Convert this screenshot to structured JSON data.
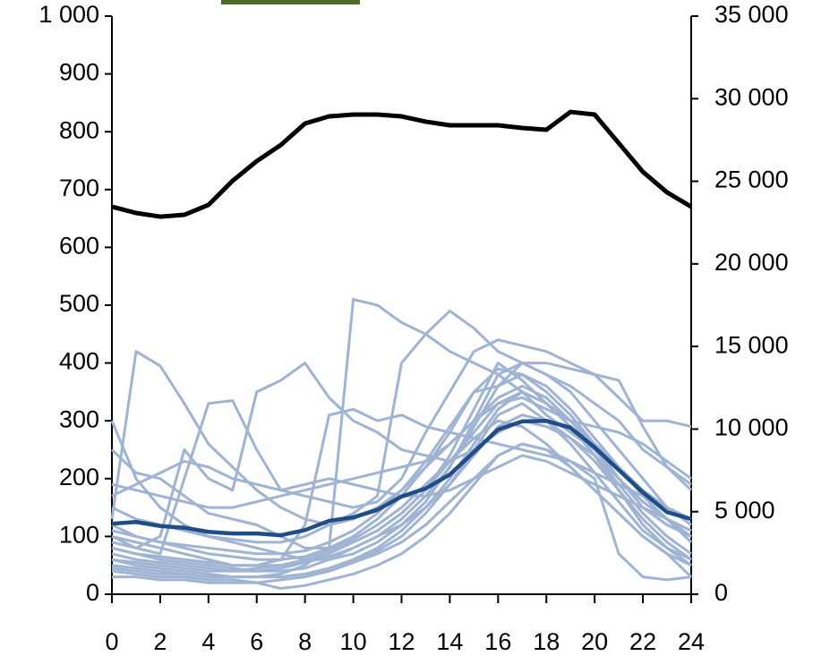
{
  "chart_data": {
    "type": "line",
    "x": [
      0,
      1,
      2,
      3,
      4,
      5,
      6,
      7,
      8,
      9,
      10,
      11,
      12,
      13,
      14,
      15,
      16,
      17,
      18,
      19,
      20,
      21,
      22,
      23,
      24
    ],
    "xlim": [
      0,
      24
    ],
    "xticks": [
      0,
      2,
      4,
      6,
      8,
      10,
      12,
      14,
      16,
      18,
      20,
      22,
      24
    ],
    "ylim": [
      0,
      1000
    ],
    "yticks": [
      0,
      100,
      200,
      300,
      400,
      500,
      600,
      700,
      800,
      900,
      {
        "value": 1000,
        "label": "1 000"
      }
    ],
    "y2lim": [
      0,
      35000
    ],
    "y2ticks": [
      0,
      {
        "value": 5000,
        "label": "5 000"
      },
      {
        "value": 10000,
        "label": "10 000"
      },
      {
        "value": 15000,
        "label": "15 000"
      },
      {
        "value": 20000,
        "label": "20 000"
      },
      {
        "value": 25000,
        "label": "25 000"
      },
      {
        "value": 30000,
        "label": "30 000"
      },
      {
        "value": 35000,
        "label": "35 000"
      }
    ],
    "series": [
      {
        "color": "#9fb3d3",
        "values": [
          300,
          200,
          150,
          120,
          100,
          90,
          80,
          70,
          60,
          60,
          70,
          90,
          120,
          160,
          220,
          300,
          380,
          400,
          380,
          350,
          300,
          250,
          200,
          150,
          120
        ]
      },
      {
        "color": "#9fb3d3",
        "values": [
          130,
          420,
          395,
          330,
          260,
          220,
          180,
          150,
          130,
          120,
          130,
          150,
          180,
          220,
          260,
          300,
          340,
          360,
          340,
          300,
          260,
          220,
          180,
          150,
          130
        ]
      },
      {
        "color": "#9fb3d3",
        "values": [
          60,
          50,
          45,
          40,
          35,
          30,
          30,
          35,
          50,
          80,
          510,
          500,
          470,
          450,
          420,
          400,
          380,
          350,
          310,
          280,
          250,
          200,
          150,
          120,
          100
        ]
      },
      {
        "color": "#9fb3d3",
        "values": [
          100,
          80,
          70,
          200,
          330,
          335,
          250,
          180,
          170,
          160,
          150,
          160,
          200,
          280,
          350,
          420,
          440,
          430,
          420,
          400,
          380,
          370,
          290,
          220,
          190
        ]
      },
      {
        "color": "#9fb3d3",
        "values": [
          250,
          210,
          200,
          170,
          140,
          130,
          120,
          100,
          80,
          80,
          90,
          110,
          140,
          180,
          240,
          320,
          400,
          370,
          330,
          300,
          250,
          200,
          160,
          130,
          100
        ]
      },
      {
        "color": "#9fb3d3",
        "values": [
          80,
          70,
          60,
          55,
          50,
          45,
          40,
          40,
          45,
          60,
          80,
          100,
          130,
          170,
          220,
          290,
          360,
          380,
          360,
          320,
          270,
          220,
          170,
          130,
          90
        ]
      },
      {
        "color": "#9fb3d3",
        "values": [
          50,
          45,
          40,
          35,
          30,
          30,
          30,
          30,
          35,
          40,
          55,
          75,
          100,
          140,
          190,
          250,
          310,
          330,
          300,
          260,
          210,
          160,
          110,
          80,
          60
        ]
      },
      {
        "color": "#9fb3d3",
        "values": [
          190,
          180,
          170,
          160,
          150,
          150,
          160,
          170,
          180,
          190,
          200,
          210,
          220,
          230,
          260,
          300,
          330,
          340,
          320,
          300,
          290,
          280,
          260,
          230,
          200
        ]
      },
      {
        "color": "#9fb3d3",
        "values": [
          120,
          100,
          90,
          80,
          70,
          65,
          60,
          60,
          65,
          80,
          100,
          130,
          170,
          220,
          280,
          350,
          390,
          380,
          350,
          310,
          260,
          200,
          150,
          120,
          100
        ]
      },
      {
        "color": "#9fb3d3",
        "values": [
          90,
          80,
          100,
          250,
          200,
          180,
          350,
          370,
          400,
          340,
          300,
          280,
          250,
          240,
          230,
          250,
          280,
          300,
          290,
          270,
          240,
          200,
          160,
          130,
          110
        ]
      },
      {
        "color": "#9fb3d3",
        "values": [
          40,
          35,
          30,
          30,
          25,
          25,
          20,
          10,
          15,
          25,
          35,
          50,
          70,
          100,
          140,
          190,
          240,
          260,
          250,
          220,
          180,
          140,
          100,
          70,
          50
        ]
      },
      {
        "color": "#9fb3d3",
        "values": [
          70,
          60,
          55,
          50,
          45,
          40,
          40,
          45,
          55,
          70,
          90,
          110,
          140,
          180,
          230,
          280,
          330,
          350,
          330,
          290,
          240,
          190,
          140,
          100,
          70
        ]
      },
      {
        "color": "#9fb3d3",
        "values": [
          150,
          130,
          120,
          110,
          100,
          95,
          90,
          90,
          100,
          120,
          140,
          170,
          400,
          450,
          490,
          460,
          420,
          400,
          400,
          390,
          380,
          340,
          300,
          300,
          290
        ]
      },
      {
        "color": "#9fb3d3",
        "values": [
          100,
          90,
          80,
          70,
          60,
          50,
          50,
          60,
          120,
          310,
          320,
          300,
          310,
          290,
          280,
          270,
          260,
          250,
          240,
          230,
          210,
          190,
          170,
          150,
          130
        ]
      },
      {
        "color": "#9fb3d3",
        "values": [
          60,
          55,
          50,
          45,
          40,
          40,
          45,
          50,
          60,
          75,
          95,
          120,
          150,
          190,
          230,
          270,
          300,
          290,
          260,
          220,
          180,
          140,
          100,
          70,
          30
        ]
      },
      {
        "color": "#9fb3d3",
        "values": [
          30,
          30,
          25,
          25,
          20,
          20,
          20,
          25,
          30,
          40,
          55,
          70,
          90,
          120,
          160,
          200,
          240,
          260,
          250,
          230,
          200,
          70,
          30,
          25,
          30
        ]
      },
      {
        "color": "#9fb3d3",
        "values": [
          110,
          100,
          90,
          85,
          80,
          75,
          70,
          70,
          75,
          90,
          110,
          140,
          180,
          230,
          290,
          350,
          360,
          400,
          380,
          360,
          330,
          300,
          250,
          220,
          180
        ]
      },
      {
        "color": "#9fb3d3",
        "values": [
          80,
          70,
          65,
          60,
          55,
          50,
          50,
          50,
          55,
          65,
          80,
          100,
          120,
          150,
          190,
          240,
          290,
          310,
          300,
          270,
          230,
          180,
          130,
          90,
          60
        ]
      },
      {
        "color": "#9fb3d3",
        "values": [
          170,
          190,
          210,
          230,
          220,
          200,
          190,
          180,
          190,
          200,
          190,
          180,
          170,
          170,
          180,
          200,
          220,
          240,
          230,
          210,
          190,
          170,
          150,
          130,
          110
        ]
      },
      {
        "color": "#9fb3d3",
        "values": [
          45,
          40,
          35,
          35,
          30,
          30,
          30,
          30,
          35,
          45,
          60,
          80,
          110,
          150,
          200,
          260,
          320,
          350,
          330,
          290,
          240,
          180,
          120,
          80,
          50
        ]
      },
      {
        "color": "#1f4e87",
        "values": [
          122,
          125,
          118,
          115,
          108,
          105,
          105,
          102,
          111,
          127,
          133,
          146,
          169,
          183,
          207,
          246,
          285,
          299,
          300,
          288,
          254,
          215,
          176,
          142,
          130
        ]
      },
      {
        "color": "#000000",
        "axis": "y2",
        "values": [
          23460,
          23080,
          22860,
          22970,
          23570,
          25030,
          26220,
          27200,
          28500,
          28930,
          29040,
          29040,
          28930,
          28610,
          28390,
          28390,
          28390,
          28230,
          28120,
          29200,
          29040,
          27310,
          25570,
          24330,
          23460
        ]
      }
    ]
  }
}
